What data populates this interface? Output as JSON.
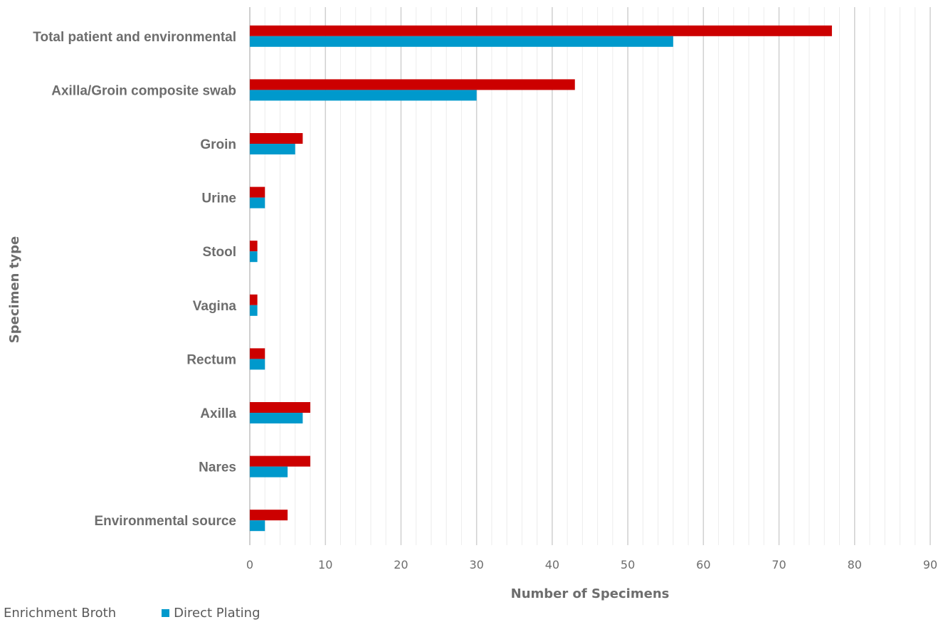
{
  "chart_data": {
    "type": "bar",
    "orientation": "horizontal",
    "title": "",
    "xlabel": "Number of Specimens",
    "ylabel": "Specimen type",
    "categories": [
      "Total patient and environmental",
      "Axilla/Groin composite swab",
      "Groin",
      "Urine",
      "Stool",
      "Vagina",
      "Rectum",
      "Axilla",
      "Nares",
      "Environmental source"
    ],
    "series": [
      {
        "name": "Enrichment Broth",
        "color": "#cc0000",
        "values": [
          77,
          43,
          7,
          2,
          1,
          1,
          2,
          8,
          8,
          5
        ]
      },
      {
        "name": "Direct Plating",
        "color": "#0099cc",
        "values": [
          56,
          30,
          6,
          2,
          1,
          1,
          2,
          7,
          5,
          2
        ]
      }
    ],
    "xlim": [
      0,
      90
    ],
    "xticks": [
      0,
      10,
      20,
      30,
      40,
      50,
      60,
      70,
      80,
      90
    ],
    "grid": true,
    "legend_position": "bottom-left"
  }
}
